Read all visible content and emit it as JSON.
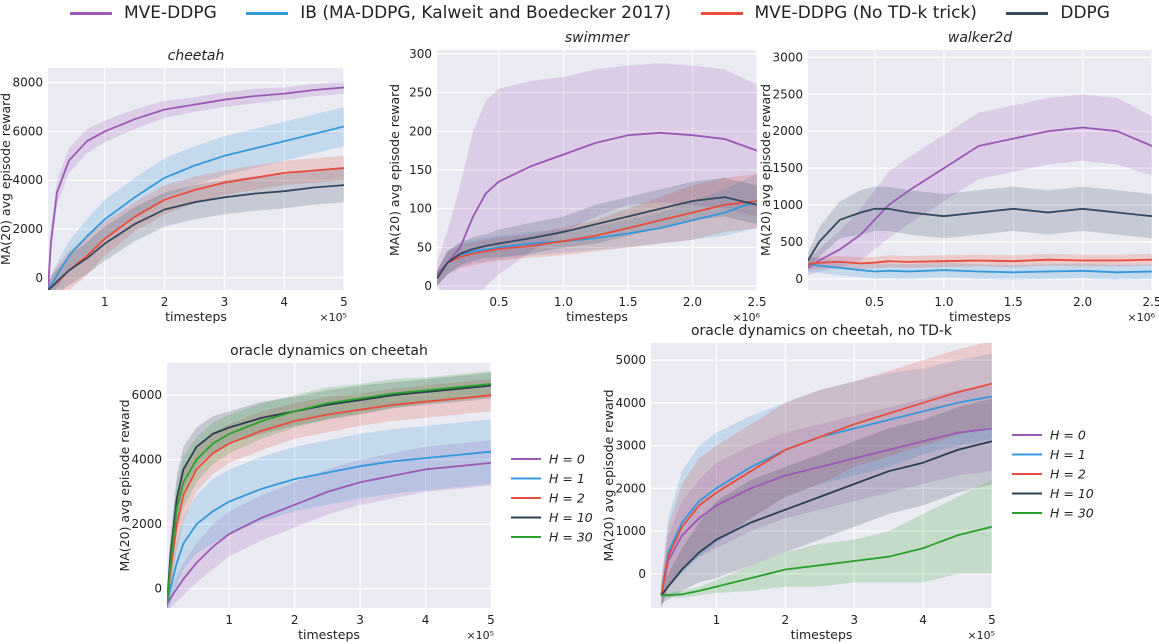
{
  "top_legend": [
    {
      "label": "MVE-DDPG",
      "color": "#9b59b6"
    },
    {
      "label": "IB (MA-DDPG, Kalweit and Boedecker 2017)",
      "color": "#3498db"
    },
    {
      "label": "MVE-DDPG (No TD-k trick)",
      "color": "#e74c3c"
    },
    {
      "label": "DDPG",
      "color": "#34495e"
    }
  ],
  "chart_data": [
    {
      "type": "line",
      "title": "cheetah",
      "xlabel": "timesteps",
      "ylabel": "MA(20) avg episode reward",
      "x_multiplier": "×10^5",
      "xlim": [
        0.05,
        5
      ],
      "ylim": [
        -500,
        8600
      ],
      "xticks": [
        1,
        2,
        3,
        4,
        5
      ],
      "xticklabels": [
        "1",
        "2",
        "3",
        "4",
        "5"
      ],
      "yticks": [
        0,
        2000,
        4000,
        6000,
        8000
      ],
      "yticklabels": [
        "0",
        "2000",
        "4000",
        "6000",
        "8000"
      ],
      "x": [
        0.05,
        0.1,
        0.2,
        0.4,
        0.7,
        1.0,
        1.5,
        2.0,
        2.5,
        3.0,
        3.5,
        4.0,
        4.5,
        5.0
      ],
      "series": [
        {
          "name": "MVE-DDPG",
          "color": "#9b59b6",
          "values": [
            -500,
            1500,
            3500,
            4800,
            5600,
            6000,
            6500,
            6900,
            7100,
            7300,
            7450,
            7550,
            7700,
            7800
          ],
          "spread": [
            600,
            500,
            500,
            500,
            500,
            450,
            400,
            350,
            300,
            300,
            300,
            250,
            250,
            250
          ]
        },
        {
          "name": "IB (MA-DDPG, Kalweit and Boedecker 2017)",
          "color": "#3498db",
          "values": [
            -500,
            -300,
            100,
            900,
            1700,
            2400,
            3300,
            4100,
            4600,
            5000,
            5300,
            5600,
            5900,
            6200
          ],
          "spread": [
            300,
            400,
            500,
            600,
            700,
            800,
            800,
            800,
            800,
            800,
            800,
            800,
            800,
            800
          ]
        },
        {
          "name": "MVE-DDPG (No TD-k trick)",
          "color": "#e74c3c",
          "values": [
            -500,
            -400,
            -200,
            300,
            900,
            1600,
            2500,
            3200,
            3600,
            3900,
            4100,
            4300,
            4400,
            4500
          ],
          "spread": [
            300,
            500,
            700,
            800,
            800,
            700,
            600,
            600,
            550,
            500,
            500,
            500,
            500,
            500
          ]
        },
        {
          "name": "DDPG",
          "color": "#34495e",
          "values": [
            -500,
            -400,
            -150,
            300,
            800,
            1400,
            2200,
            2800,
            3100,
            3300,
            3450,
            3550,
            3700,
            3800
          ],
          "spread": [
            300,
            400,
            500,
            600,
            650,
            700,
            700,
            700,
            700,
            700,
            700,
            700,
            700,
            700
          ]
        }
      ]
    },
    {
      "type": "line",
      "title": "swimmer",
      "xlabel": "timesteps",
      "ylabel": "MA(20) avg episode reward",
      "x_multiplier": "×10^6",
      "xlim": [
        0.02,
        2.5
      ],
      "ylim": [
        -5,
        305
      ],
      "xticks": [
        0.5,
        1.0,
        1.5,
        2.0,
        2.5
      ],
      "xticklabels": [
        "0.5",
        "1.0",
        "1.5",
        "2.0",
        "2.5"
      ],
      "yticks": [
        0,
        50,
        100,
        150,
        200,
        250,
        300
      ],
      "yticklabels": [
        "0",
        "50",
        "100",
        "150",
        "200",
        "250",
        "300"
      ],
      "x": [
        0.02,
        0.1,
        0.2,
        0.3,
        0.4,
        0.5,
        0.75,
        1.0,
        1.25,
        1.5,
        1.75,
        2.0,
        2.25,
        2.5
      ],
      "series": [
        {
          "name": "MVE-DDPG",
          "color": "#9b59b6",
          "values": [
            15,
            30,
            50,
            90,
            120,
            135,
            155,
            170,
            185,
            195,
            198,
            195,
            190,
            175
          ],
          "spread": [
            15,
            40,
            80,
            110,
            120,
            120,
            110,
            100,
            95,
            90,
            90,
            90,
            90,
            85
          ]
        },
        {
          "name": "IB (MA-DDPG, Kalweit and Boedecker 2017)",
          "color": "#3498db",
          "values": [
            10,
            30,
            40,
            45,
            47,
            50,
            55,
            58,
            62,
            68,
            75,
            85,
            95,
            110
          ],
          "spread": [
            10,
            15,
            15,
            15,
            15,
            15,
            15,
            15,
            15,
            18,
            20,
            25,
            30,
            35
          ]
        },
        {
          "name": "MVE-DDPG (No TD-k trick)",
          "color": "#e74c3c",
          "values": [
            10,
            30,
            38,
            42,
            45,
            48,
            52,
            58,
            65,
            75,
            85,
            95,
            105,
            110
          ],
          "spread": [
            10,
            15,
            15,
            15,
            15,
            15,
            15,
            18,
            20,
            25,
            30,
            35,
            35,
            35
          ]
        },
        {
          "name": "DDPG",
          "color": "#34495e",
          "values": [
            10,
            30,
            42,
            48,
            52,
            55,
            62,
            70,
            80,
            90,
            100,
            110,
            115,
            105
          ],
          "spread": [
            10,
            15,
            15,
            15,
            15,
            18,
            20,
            20,
            25,
            25,
            25,
            25,
            25,
            25
          ]
        }
      ]
    },
    {
      "type": "line",
      "title": "walker2d",
      "xlabel": "timesteps",
      "ylabel": "MA(20) avg episode reward",
      "x_multiplier": "×10^6",
      "xlim": [
        0.02,
        2.5
      ],
      "ylim": [
        -150,
        3100
      ],
      "xticks": [
        0.5,
        1.0,
        1.5,
        2.0,
        2.5
      ],
      "xticklabels": [
        "0.5",
        "1.0",
        "1.5",
        "2.0",
        "2.5"
      ],
      "yticks": [
        0,
        500,
        1000,
        1500,
        2000,
        2500,
        3000
      ],
      "yticklabels": [
        "0",
        "500",
        "1000",
        "1500",
        "2000",
        "2500",
        "3000"
      ],
      "x": [
        0.02,
        0.1,
        0.25,
        0.4,
        0.5,
        0.6,
        0.75,
        1.0,
        1.25,
        1.5,
        1.75,
        2.0,
        2.25,
        2.5
      ],
      "series": [
        {
          "name": "MVE-DDPG",
          "color": "#9b59b6",
          "values": [
            150,
            250,
            400,
            600,
            800,
            1000,
            1200,
            1500,
            1800,
            1900,
            2000,
            2050,
            2000,
            1800
          ],
          "spread": [
            100,
            150,
            250,
            350,
            400,
            450,
            450,
            450,
            450,
            450,
            450,
            450,
            450,
            400
          ]
        },
        {
          "name": "IB (MA-DDPG, Kalweit and Boedecker 2017)",
          "color": "#3498db",
          "values": [
            200,
            180,
            150,
            120,
            100,
            110,
            100,
            120,
            100,
            90,
            100,
            110,
            90,
            100
          ],
          "spread": [
            100,
            100,
            100,
            100,
            100,
            100,
            100,
            100,
            100,
            100,
            100,
            100,
            100,
            100
          ]
        },
        {
          "name": "MVE-DDPG (No TD-k trick)",
          "color": "#e74c3c",
          "values": [
            200,
            220,
            230,
            210,
            220,
            240,
            230,
            240,
            250,
            240,
            260,
            250,
            250,
            260
          ],
          "spread": [
            80,
            80,
            80,
            80,
            80,
            80,
            80,
            80,
            80,
            80,
            80,
            80,
            80,
            80
          ]
        },
        {
          "name": "DDPG",
          "color": "#34495e",
          "values": [
            250,
            500,
            800,
            900,
            950,
            950,
            900,
            850,
            900,
            950,
            900,
            950,
            900,
            850
          ],
          "spread": [
            100,
            200,
            250,
            300,
            300,
            300,
            300,
            300,
            300,
            300,
            300,
            300,
            300,
            300
          ]
        }
      ]
    },
    {
      "type": "line",
      "title": "oracle dynamics on cheetah",
      "xlabel": "timesteps",
      "ylabel": "MA(20) avg episode reward",
      "x_multiplier": "×10^5",
      "xlim": [
        0.05,
        5
      ],
      "ylim": [
        -600,
        7000
      ],
      "xticks": [
        1,
        2,
        3,
        4,
        5
      ],
      "xticklabels": [
        "1",
        "2",
        "3",
        "4",
        "5"
      ],
      "yticks": [
        0,
        2000,
        4000,
        6000
      ],
      "yticklabels": [
        "0",
        "2000",
        "4000",
        "6000"
      ],
      "legend": [
        "H = 0",
        "H = 1",
        "H = 2",
        "H = 10",
        "H = 30"
      ],
      "x": [
        0.05,
        0.1,
        0.2,
        0.3,
        0.5,
        0.75,
        1.0,
        1.5,
        2.0,
        2.5,
        3.0,
        3.5,
        4.0,
        4.5,
        5.0
      ],
      "series": [
        {
          "name": "H = 0",
          "color": "#9b59b6",
          "values": [
            -500,
            -300,
            0,
            300,
            800,
            1300,
            1700,
            2200,
            2600,
            3000,
            3300,
            3500,
            3700,
            3800,
            3900
          ],
          "spread": [
            300,
            300,
            400,
            500,
            600,
            700,
            700,
            700,
            700,
            700,
            700,
            700,
            700,
            700,
            700
          ]
        },
        {
          "name": "H = 1",
          "color": "#3498db",
          "values": [
            -500,
            0,
            800,
            1400,
            2000,
            2400,
            2700,
            3100,
            3400,
            3600,
            3800,
            3950,
            4050,
            4150,
            4250
          ],
          "spread": [
            300,
            500,
            700,
            800,
            900,
            1000,
            1000,
            1000,
            1000,
            1000,
            1000,
            1000,
            1000,
            1000,
            1000
          ]
        },
        {
          "name": "H = 2",
          "color": "#e74c3c",
          "values": [
            -500,
            500,
            2000,
            2900,
            3700,
            4200,
            4500,
            4900,
            5200,
            5400,
            5550,
            5700,
            5800,
            5900,
            6000
          ],
          "spread": [
            300,
            600,
            800,
            800,
            700,
            650,
            600,
            600,
            550,
            550,
            500,
            500,
            500,
            500,
            500
          ]
        },
        {
          "name": "H = 10",
          "color": "#2c3e50",
          "values": [
            -500,
            1000,
            2800,
            3700,
            4400,
            4800,
            5000,
            5300,
            5500,
            5700,
            5850,
            6000,
            6100,
            6200,
            6300
          ],
          "spread": [
            300,
            600,
            700,
            700,
            600,
            550,
            500,
            500,
            450,
            450,
            450,
            400,
            400,
            400,
            400
          ]
        },
        {
          "name": "H = 30",
          "color": "#2ca02c",
          "values": [
            -500,
            700,
            2500,
            3300,
            4000,
            4500,
            4800,
            5200,
            5500,
            5750,
            5900,
            6050,
            6150,
            6250,
            6350
          ],
          "spread": [
            300,
            600,
            800,
            800,
            700,
            650,
            600,
            550,
            500,
            500,
            450,
            450,
            400,
            400,
            400
          ]
        }
      ]
    },
    {
      "type": "line",
      "title": "oracle dynamics on cheetah, no TD-k",
      "xlabel": "timesteps",
      "ylabel": "MA(20) avg episode reward",
      "x_multiplier": "×10^5",
      "xlim": [
        0.05,
        5
      ],
      "ylim": [
        -800,
        5400
      ],
      "xticks": [
        1,
        2,
        3,
        4,
        5
      ],
      "xticklabels": [
        "1",
        "2",
        "3",
        "4",
        "5"
      ],
      "yticks": [
        0,
        1000,
        2000,
        3000,
        4000,
        5000
      ],
      "yticklabels": [
        "0",
        "1000",
        "2000",
        "3000",
        "4000",
        "5000"
      ],
      "legend": [
        "H = 0",
        "H = 1",
        "H = 2",
        "H = 10",
        "H = 30"
      ],
      "x": [
        0.2,
        0.3,
        0.5,
        0.75,
        1.0,
        1.5,
        2.0,
        2.5,
        3.0,
        3.5,
        4.0,
        4.5,
        5.0
      ],
      "series": [
        {
          "name": "H = 0",
          "color": "#9b59b6",
          "values": [
            -500,
            300,
            900,
            1300,
            1600,
            2000,
            2300,
            2500,
            2700,
            2900,
            3100,
            3300,
            3400
          ],
          "spread": [
            300,
            600,
            800,
            900,
            1000,
            1000,
            1000,
            1000,
            1000,
            1000,
            1000,
            1000,
            1000
          ]
        },
        {
          "name": "H = 1",
          "color": "#3498db",
          "values": [
            -500,
            500,
            1200,
            1700,
            2000,
            2500,
            2900,
            3200,
            3400,
            3600,
            3800,
            4000,
            4150
          ],
          "spread": [
            300,
            800,
            1200,
            1300,
            1300,
            1200,
            1100,
            1100,
            1100,
            1100,
            1000,
            1000,
            1000
          ]
        },
        {
          "name": "H = 2",
          "color": "#e74c3c",
          "values": [
            -500,
            400,
            1100,
            1600,
            1900,
            2400,
            2900,
            3200,
            3500,
            3750,
            4000,
            4250,
            4450
          ],
          "spread": [
            300,
            700,
            1000,
            1100,
            1100,
            1100,
            1100,
            1100,
            1000,
            1000,
            1000,
            1000,
            1000
          ]
        },
        {
          "name": "H = 10",
          "color": "#2c3e50",
          "values": [
            -500,
            -300,
            100,
            500,
            800,
            1200,
            1500,
            1800,
            2100,
            2400,
            2600,
            2900,
            3100
          ],
          "spread": [
            200,
            300,
            500,
            700,
            900,
            1000,
            1000,
            1000,
            1000,
            1000,
            1000,
            1000,
            1000
          ]
        },
        {
          "name": "H = 30",
          "color": "#2ca02c",
          "values": [
            -500,
            -500,
            -480,
            -400,
            -300,
            -100,
            100,
            200,
            300,
            400,
            600,
            900,
            1100
          ],
          "spread": [
            50,
            50,
            80,
            100,
            150,
            300,
            400,
            500,
            500,
            600,
            800,
            900,
            1100
          ]
        }
      ]
    }
  ]
}
